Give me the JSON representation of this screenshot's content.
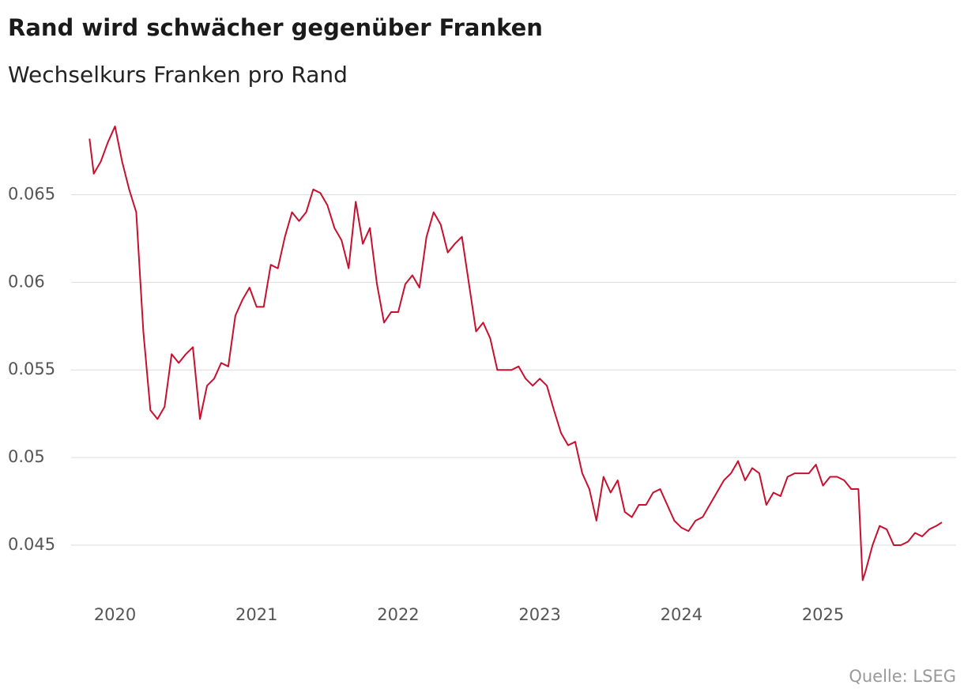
{
  "chart_data": {
    "type": "line",
    "title": "Rand wird schwächer gegenüber Franken",
    "subtitle": "Wechselkurs Franken pro Rand",
    "source": "Quelle: LSEG",
    "xlim": [
      2019.69,
      2025.94
    ],
    "xticks": [
      2020,
      2021,
      2022,
      2023,
      2024,
      2025
    ],
    "ylim": [
      0.0418,
      0.0698
    ],
    "yticks": [
      0.065,
      0.06,
      0.055,
      0.05,
      0.045
    ],
    "grid": true,
    "series": [
      {
        "color": "#c8102e",
        "x": [
          2019.82,
          2019.85,
          2019.9,
          2019.95,
          2020,
          2020.05,
          2020.1,
          2020.15,
          2020.2,
          2020.25,
          2020.3,
          2020.35,
          2020.4,
          2020.45,
          2020.5,
          2020.55,
          2020.6,
          2020.65,
          2020.7,
          2020.75,
          2020.8,
          2020.85,
          2020.9,
          2020.95,
          2021,
          2021.05,
          2021.1,
          2021.15,
          2021.2,
          2021.25,
          2021.3,
          2021.35,
          2021.4,
          2021.45,
          2021.5,
          2021.55,
          2021.6,
          2021.65,
          2021.7,
          2021.75,
          2021.8,
          2021.85,
          2021.9,
          2021.95,
          2022,
          2022.05,
          2022.1,
          2022.15,
          2022.2,
          2022.25,
          2022.3,
          2022.35,
          2022.4,
          2022.45,
          2022.5,
          2022.55,
          2022.6,
          2022.65,
          2022.7,
          2022.75,
          2022.8,
          2022.85,
          2022.9,
          2022.95,
          2023,
          2023.05,
          2023.1,
          2023.15,
          2023.2,
          2023.25,
          2023.3,
          2023.35,
          2023.4,
          2023.45,
          2023.5,
          2023.55,
          2023.6,
          2023.65,
          2023.7,
          2023.75,
          2023.8,
          2023.85,
          2023.9,
          2023.95,
          2024,
          2024.05,
          2024.1,
          2024.15,
          2024.2,
          2024.25,
          2024.3,
          2024.35,
          2024.4,
          2024.45,
          2024.5,
          2024.55,
          2024.6,
          2024.65,
          2024.7,
          2024.75,
          2024.8,
          2024.85,
          2024.9,
          2024.95,
          2025,
          2025.05,
          2025.1,
          2025.15,
          2025.2,
          2025.25,
          2025.28,
          2025.3,
          2025.35,
          2025.4,
          2025.45,
          2025.5,
          2025.55,
          2025.6,
          2025.65,
          2025.7,
          2025.75,
          2025.8,
          2025.84
        ],
        "values": [
          0.0682,
          0.0662,
          0.0669,
          0.068,
          0.0689,
          0.0669,
          0.0653,
          0.064,
          0.0572,
          0.0527,
          0.0522,
          0.0529,
          0.0559,
          0.0554,
          0.0559,
          0.0563,
          0.0522,
          0.0541,
          0.0545,
          0.0554,
          0.0552,
          0.0581,
          0.059,
          0.0597,
          0.0586,
          0.0586,
          0.061,
          0.0608,
          0.0626,
          0.064,
          0.0635,
          0.064,
          0.0653,
          0.0651,
          0.0644,
          0.0631,
          0.0624,
          0.0608,
          0.0646,
          0.0622,
          0.0631,
          0.0599,
          0.0577,
          0.0583,
          0.0583,
          0.0599,
          0.0604,
          0.0597,
          0.0626,
          0.064,
          0.0633,
          0.0617,
          0.0622,
          0.0626,
          0.0599,
          0.0572,
          0.0577,
          0.0568,
          0.055,
          0.055,
          0.055,
          0.0552,
          0.0545,
          0.0541,
          0.0545,
          0.0541,
          0.0527,
          0.0514,
          0.0507,
          0.0509,
          0.0491,
          0.0482,
          0.0464,
          0.0489,
          0.048,
          0.0487,
          0.0469,
          0.0466,
          0.0473,
          0.0473,
          0.048,
          0.0482,
          0.0473,
          0.0464,
          0.046,
          0.0458,
          0.0464,
          0.0466,
          0.0473,
          0.048,
          0.0487,
          0.0491,
          0.0498,
          0.0487,
          0.0494,
          0.0491,
          0.0473,
          0.048,
          0.0478,
          0.0489,
          0.0491,
          0.0491,
          0.0491,
          0.0496,
          0.0484,
          0.0489,
          0.0489,
          0.0487,
          0.0482,
          0.0482,
          0.043,
          0.0435,
          0.045,
          0.0461,
          0.0459,
          0.045,
          0.045,
          0.0452,
          0.0457,
          0.0455,
          0.0459,
          0.0461,
          0.0463
        ]
      }
    ]
  }
}
